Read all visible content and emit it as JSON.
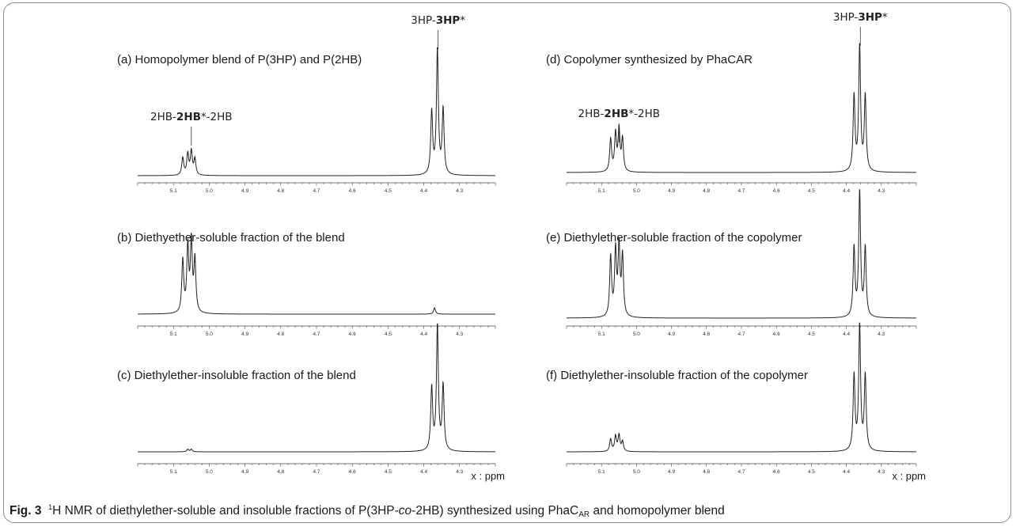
{
  "caption": {
    "label": "Fig. 3",
    "sup": "1",
    "text_a": "H NMR of diethylether-soluble and insoluble fractions of P(3HP-",
    "italic": "co",
    "text_b": "-2HB) synthesized using PhaC",
    "sub": "AR",
    "text_c": " and homopolymer blend"
  },
  "chart_data": [
    {
      "type": "line",
      "id": "a",
      "title": "(a) Homopolymer blend of P(3HP) and P(2HB)",
      "xlim": [
        5.2,
        4.2
      ],
      "ylim": [
        0,
        1
      ],
      "reversed_x": true,
      "ticks": [
        5.1,
        5.0,
        4.9,
        4.8,
        4.7,
        4.6,
        4.5,
        4.4,
        4.3
      ],
      "tick_labels": [
        "5.1",
        "5.0",
        "4.9",
        "4.8",
        "4.7",
        "4.6",
        "4.5",
        "4.4",
        "4.3"
      ],
      "xlabel": "",
      "annotations": [
        {
          "pre": "2HB-",
          "bold": "2HB",
          "post": "*-2HB",
          "x": 5.05
        },
        {
          "pre": "3HP-",
          "bold": "3HP",
          "post": "*",
          "x": 4.36
        }
      ],
      "peaks": [
        {
          "x": 5.074,
          "h": 0.14
        },
        {
          "x": 5.06,
          "h": 0.17
        },
        {
          "x": 5.05,
          "h": 0.19
        },
        {
          "x": 5.04,
          "h": 0.13
        },
        {
          "x": 4.378,
          "h": 0.5
        },
        {
          "x": 4.362,
          "h": 1.0
        },
        {
          "x": 4.346,
          "h": 0.52
        }
      ]
    },
    {
      "type": "line",
      "id": "b",
      "title": "(b) Diethyether-soluble fraction of the blend",
      "xlim": [
        5.2,
        4.2
      ],
      "ylim": [
        0,
        1
      ],
      "reversed_x": true,
      "ticks": [
        5.1,
        5.0,
        4.9,
        4.8,
        4.7,
        4.6,
        4.5,
        4.4,
        4.3
      ],
      "tick_labels": [
        "5.1",
        "5.0",
        "4.9",
        "4.8",
        "4.7",
        "4.6",
        "4.5",
        "4.4",
        "4.3"
      ],
      "xlabel": "",
      "annotations": [],
      "peaks": [
        {
          "x": 5.074,
          "h": 0.42
        },
        {
          "x": 5.06,
          "h": 0.52
        },
        {
          "x": 5.05,
          "h": 0.56
        },
        {
          "x": 5.04,
          "h": 0.42
        },
        {
          "x": 4.37,
          "h": 0.05
        }
      ]
    },
    {
      "type": "line",
      "id": "c",
      "title": "(c) Diethylether-insoluble fraction of the blend",
      "xlim": [
        5.2,
        4.2
      ],
      "ylim": [
        0,
        1
      ],
      "reversed_x": true,
      "ticks": [
        5.1,
        5.0,
        4.9,
        4.8,
        4.7,
        4.6,
        4.5,
        4.4,
        4.3
      ],
      "tick_labels": [
        "5.1",
        "5.0",
        "4.9",
        "4.8",
        "4.7",
        "4.6",
        "4.5",
        "4.4",
        "4.3"
      ],
      "xlabel": "x : ppm",
      "annotations": [],
      "peaks": [
        {
          "x": 5.06,
          "h": 0.02
        },
        {
          "x": 5.05,
          "h": 0.02
        },
        {
          "x": 4.378,
          "h": 0.5
        },
        {
          "x": 4.362,
          "h": 1.0
        },
        {
          "x": 4.346,
          "h": 0.52
        }
      ]
    },
    {
      "type": "line",
      "id": "d",
      "title": "(d) Copolymer synthesized by PhaCAR",
      "xlim": [
        5.2,
        4.2
      ],
      "ylim": [
        0,
        1
      ],
      "reversed_x": true,
      "ticks": [
        5.1,
        5.0,
        4.9,
        4.8,
        4.7,
        4.6,
        4.5,
        4.4,
        4.3
      ],
      "tick_labels": [
        "5.1",
        "5.0",
        "4.9",
        "4.8",
        "4.7",
        "4.6",
        "4.5",
        "4.4",
        "4.3"
      ],
      "xlabel": "",
      "annotations": [
        {
          "pre": "2HB-",
          "bold": "2HB",
          "post": "*-2HB",
          "x": 5.05
        },
        {
          "pre": "3HP-",
          "bold": "3HP",
          "post": "*",
          "x": 4.36
        }
      ],
      "peaks": [
        {
          "x": 5.074,
          "h": 0.26
        },
        {
          "x": 5.06,
          "h": 0.3
        },
        {
          "x": 5.05,
          "h": 0.33
        },
        {
          "x": 5.04,
          "h": 0.26
        },
        {
          "x": 4.378,
          "h": 0.6
        },
        {
          "x": 4.362,
          "h": 1.0
        },
        {
          "x": 4.346,
          "h": 0.6
        }
      ]
    },
    {
      "type": "line",
      "id": "e",
      "title": "(e) Diethylether-soluble fraction of the copolymer",
      "xlim": [
        5.2,
        4.2
      ],
      "ylim": [
        0,
        1
      ],
      "reversed_x": true,
      "ticks": [
        5.1,
        5.0,
        4.9,
        4.8,
        4.7,
        4.6,
        4.5,
        4.4,
        4.3
      ],
      "tick_labels": [
        "5.1",
        "5.0",
        "4.9",
        "4.8",
        "4.7",
        "4.6",
        "4.5",
        "4.4",
        "4.3"
      ],
      "xlabel": "",
      "annotations": [],
      "peaks": [
        {
          "x": 5.074,
          "h": 0.48
        },
        {
          "x": 5.06,
          "h": 0.52
        },
        {
          "x": 5.05,
          "h": 0.55
        },
        {
          "x": 5.04,
          "h": 0.48
        },
        {
          "x": 4.378,
          "h": 0.55
        },
        {
          "x": 4.362,
          "h": 1.0
        },
        {
          "x": 4.346,
          "h": 0.55
        }
      ]
    },
    {
      "type": "line",
      "id": "f",
      "title": "(f) Diethylether-insoluble fraction of the copolymer",
      "xlim": [
        5.2,
        4.2
      ],
      "ylim": [
        0,
        1
      ],
      "reversed_x": true,
      "ticks": [
        5.1,
        5.0,
        4.9,
        4.8,
        4.7,
        4.6,
        4.5,
        4.4,
        4.3
      ],
      "tick_labels": [
        "5.1",
        "5.0",
        "4.9",
        "4.8",
        "4.7",
        "4.6",
        "4.5",
        "4.4",
        "4.3"
      ],
      "xlabel": "x : ppm",
      "annotations": [],
      "peaks": [
        {
          "x": 5.074,
          "h": 0.1
        },
        {
          "x": 5.06,
          "h": 0.12
        },
        {
          "x": 5.05,
          "h": 0.13
        },
        {
          "x": 5.04,
          "h": 0.08
        },
        {
          "x": 4.378,
          "h": 0.6
        },
        {
          "x": 4.362,
          "h": 1.0
        },
        {
          "x": 4.346,
          "h": 0.6
        }
      ]
    }
  ]
}
